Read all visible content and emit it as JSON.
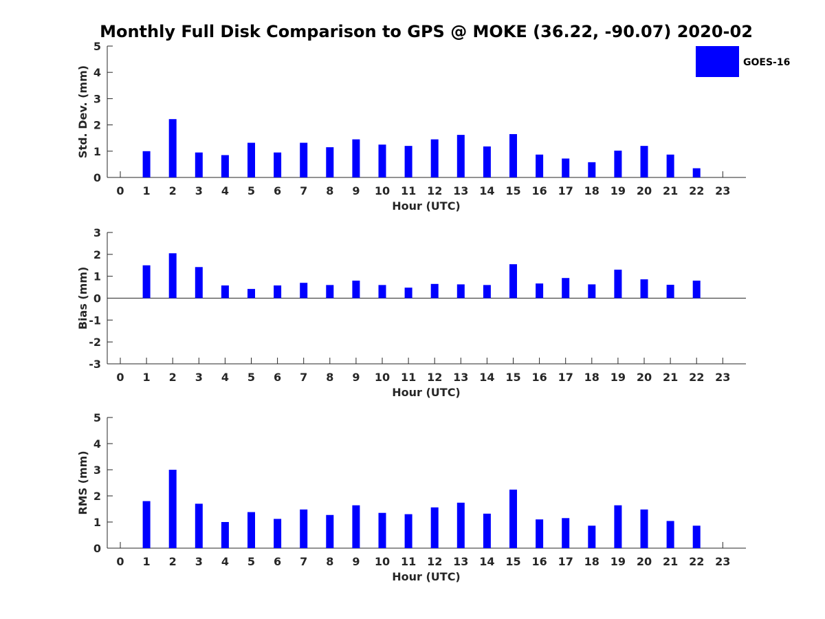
{
  "title": "Monthly Full Disk Comparison to GPS @ MOKE (36.22, -90.07) 2020-02",
  "legend": {
    "label": "GOES-16",
    "color": "#0000ff",
    "placement": "top-right"
  },
  "colors": {
    "bar": "#0000ff",
    "axis": "#262626"
  },
  "chart_data": [
    {
      "type": "bar",
      "title": "Monthly Full Disk Comparison to GPS @ MOKE (36.22, -90.07) 2020-02",
      "xlabel": "Hour (UTC)",
      "ylabel": "Std. Dev. (mm)",
      "categories": [
        "0",
        "1",
        "2",
        "3",
        "4",
        "5",
        "6",
        "7",
        "8",
        "9",
        "10",
        "11",
        "12",
        "13",
        "14",
        "15",
        "16",
        "17",
        "18",
        "19",
        "20",
        "21",
        "22",
        "23"
      ],
      "ylim": [
        0,
        5
      ],
      "yticks": [
        "0",
        "1",
        "2",
        "3",
        "4",
        "5"
      ],
      "grid": false,
      "series": [
        {
          "name": "GOES-16",
          "values": [
            null,
            1.0,
            2.22,
            0.95,
            0.85,
            1.32,
            0.95,
            1.32,
            1.15,
            1.45,
            1.25,
            1.2,
            1.45,
            1.62,
            1.18,
            1.65,
            0.87,
            0.72,
            0.58,
            1.02,
            1.2,
            0.87,
            0.35,
            null
          ]
        }
      ]
    },
    {
      "type": "bar",
      "xlabel": "Hour (UTC)",
      "ylabel": "Bias (mm)",
      "categories": [
        "0",
        "1",
        "2",
        "3",
        "4",
        "5",
        "6",
        "7",
        "8",
        "9",
        "10",
        "11",
        "12",
        "13",
        "14",
        "15",
        "16",
        "17",
        "18",
        "19",
        "20",
        "21",
        "22",
        "23"
      ],
      "ylim": [
        -3,
        3
      ],
      "yticks": [
        "-3",
        "-2",
        "-1",
        "0",
        "1",
        "2",
        "3"
      ],
      "grid": false,
      "series": [
        {
          "name": "GOES-16",
          "values": [
            null,
            1.5,
            2.05,
            1.42,
            0.58,
            0.42,
            0.58,
            0.7,
            0.6,
            0.8,
            0.6,
            0.48,
            0.65,
            0.63,
            0.6,
            1.55,
            0.67,
            0.92,
            0.63,
            1.3,
            0.86,
            0.61,
            0.8,
            null
          ]
        }
      ]
    },
    {
      "type": "bar",
      "xlabel": "Hour (UTC)",
      "ylabel": "RMS (mm)",
      "categories": [
        "0",
        "1",
        "2",
        "3",
        "4",
        "5",
        "6",
        "7",
        "8",
        "9",
        "10",
        "11",
        "12",
        "13",
        "14",
        "15",
        "16",
        "17",
        "18",
        "19",
        "20",
        "21",
        "22",
        "23"
      ],
      "ylim": [
        0,
        5
      ],
      "yticks": [
        "0",
        "1",
        "2",
        "3",
        "4",
        "5"
      ],
      "grid": false,
      "series": [
        {
          "name": "GOES-16",
          "values": [
            null,
            1.8,
            3.0,
            1.7,
            1.0,
            1.38,
            1.12,
            1.48,
            1.27,
            1.64,
            1.35,
            1.3,
            1.56,
            1.74,
            1.32,
            2.24,
            1.1,
            1.15,
            0.86,
            1.64,
            1.48,
            1.04,
            0.86,
            null
          ]
        }
      ]
    }
  ]
}
